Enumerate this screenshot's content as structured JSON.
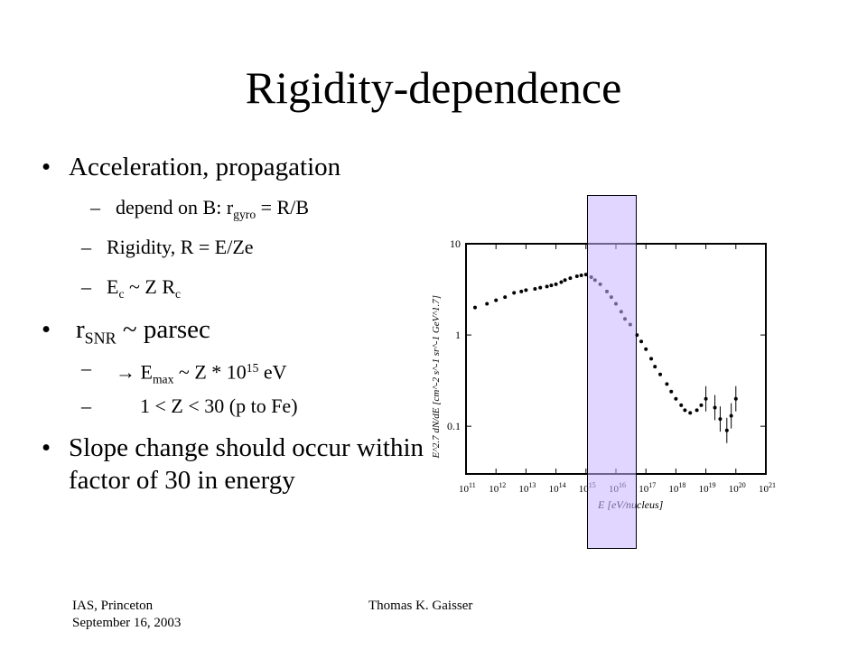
{
  "slide": {
    "title": "Rigidity-dependence",
    "footer": {
      "left_line1": "IAS, Princeton",
      "left_line2": "September 16, 2003",
      "center": "Thomas K. Gaisser"
    }
  },
  "bullets": {
    "b1": "Acceleration, propagation",
    "b1_sub1_prefix": "depend on B: r",
    "b1_sub1_subscript": "gyro",
    "b1_sub1_suffix": "= R/B",
    "b1_sub2": "Rigidity, R = E/Ze",
    "b1_sub3_E": "E",
    "b1_sub3_c1": "c",
    "b1_sub3_mid": "~ Z R",
    "b1_sub3_c2": "c",
    "b2_r": "r",
    "b2_sub": "SNR",
    "b2_suffix": "~ parsec",
    "b2_sub1_arrow": "→",
    "b2_sub1_E": "E",
    "b2_sub1_max": "max",
    "b2_sub1_mid": "~ Z * 10",
    "b2_sub1_exp": "15",
    "b2_sub1_unit": "eV",
    "b2_sub2": "1 < Z < 30 (p to Fe)",
    "b3": "Slope change should occur within factor of 30 in energy"
  },
  "chart_data": {
    "type": "scatter",
    "title": "",
    "xlabel": "E [eV/nucleus]",
    "ylabel": "E^2.7 dN/dE [cm^-2 s^-1 sr^-1 GeV^1.7]",
    "x_log": true,
    "y_log": true,
    "xlim": [
      100000000000.0,
      1e+21
    ],
    "ylim": [
      0.03,
      10
    ],
    "x_ticks": [
      "10^11",
      "10^12",
      "10^13",
      "10^14",
      "10^15",
      "10^16",
      "10^17",
      "10^18",
      "10^19",
      "10^20",
      "10^21"
    ],
    "y_ticks": [
      "10",
      "1",
      "0.1"
    ],
    "highlight_band_x": [
      1000000000000000.0,
      1e+16
    ],
    "series": [
      {
        "points": [
          [
            200000000000.0,
            2.0
          ],
          [
            500000000000.0,
            2.2
          ],
          [
            1000000000000.0,
            2.4
          ],
          [
            2000000000000.0,
            2.6
          ],
          [
            4000000000000.0,
            2.9
          ],
          [
            7000000000000.0,
            3.0
          ],
          [
            10000000000000.0,
            3.1
          ],
          [
            20000000000000.0,
            3.2
          ],
          [
            30000000000000.0,
            3.3
          ],
          [
            50000000000000.0,
            3.4
          ],
          [
            70000000000000.0,
            3.5
          ],
          [
            100000000000000.0,
            3.6
          ],
          [
            150000000000000.0,
            3.8
          ],
          [
            200000000000000.0,
            4.0
          ],
          [
            300000000000000.0,
            4.2
          ],
          [
            500000000000000.0,
            4.4
          ],
          [
            700000000000000.0,
            4.5
          ],
          [
            1000000000000000.0,
            4.6
          ],
          [
            1500000000000000.0,
            4.3
          ],
          [
            2000000000000000.0,
            4.0
          ],
          [
            3000000000000000.0,
            3.6
          ],
          [
            5000000000000000.0,
            3.0
          ],
          [
            7000000000000000.0,
            2.6
          ],
          [
            1e+16,
            2.2
          ],
          [
            1.5e+16,
            1.8
          ],
          [
            2e+16,
            1.5
          ],
          [
            3e+16,
            1.3
          ],
          [
            5e+16,
            1.0
          ],
          [
            7e+16,
            0.85
          ],
          [
            1e+17,
            0.7
          ],
          [
            1.5e+17,
            0.55
          ],
          [
            2e+17,
            0.45
          ],
          [
            3e+17,
            0.37
          ],
          [
            5e+17,
            0.29
          ],
          [
            7e+17,
            0.24
          ],
          [
            1e+18,
            0.2
          ],
          [
            1.5e+18,
            0.17
          ],
          [
            2e+18,
            0.15
          ],
          [
            3e+18,
            0.14
          ],
          [
            5e+18,
            0.15
          ],
          [
            7e+18,
            0.17
          ],
          [
            1e+19,
            0.2
          ],
          [
            2e+19,
            0.16
          ],
          [
            3e+19,
            0.12
          ],
          [
            5e+19,
            0.09
          ],
          [
            7e+19,
            0.13
          ],
          [
            1e+20,
            0.2
          ]
        ]
      }
    ]
  }
}
